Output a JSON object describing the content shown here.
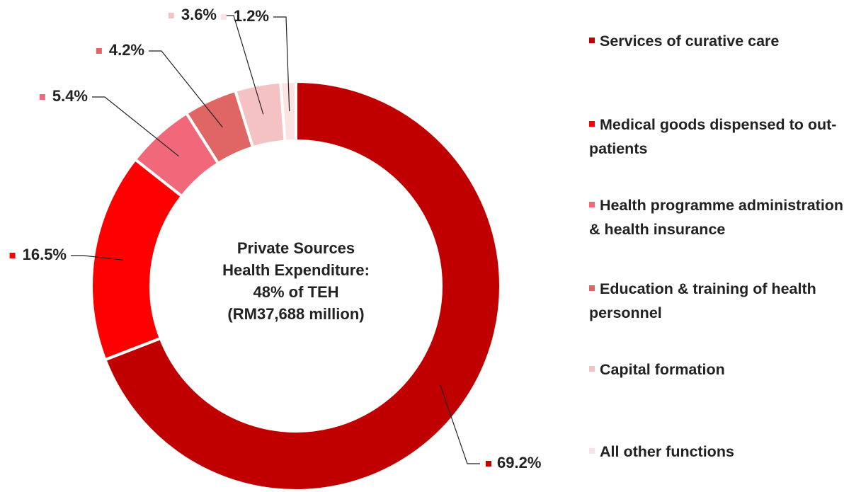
{
  "chart_data": {
    "type": "donut",
    "categories": [
      "Services of curative care",
      "Medical goods dispensed to out-patients",
      "Health programme administration & health insurance",
      "Education & training of health personnel",
      "Capital formation",
      "All other functions"
    ],
    "values": [
      69.2,
      16.5,
      5.4,
      4.2,
      3.6,
      1.2
    ],
    "value_labels": [
      "69.2%",
      "16.5%",
      "5.4%",
      "4.2%",
      "3.6%",
      "1.2%"
    ],
    "colors": [
      "#c00000",
      "#ff0000",
      "#f0687a",
      "#e06666",
      "#f4c2c2",
      "#fbe3e3"
    ],
    "center_text": [
      "Private Sources",
      "Health Expenditure:",
      "48% of TEH",
      "(RM37,688 million)"
    ]
  }
}
